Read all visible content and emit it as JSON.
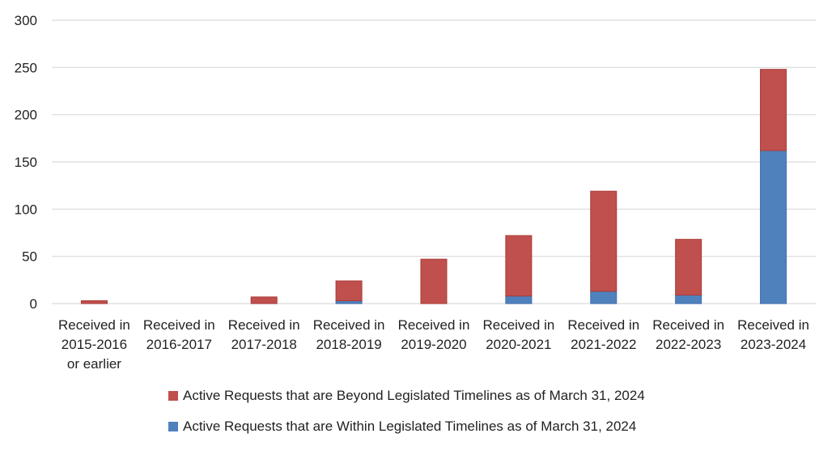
{
  "chart_data": {
    "type": "bar",
    "stacked": true,
    "title": "",
    "xlabel": "",
    "ylabel": "",
    "ylim": [
      0,
      300
    ],
    "yticks": [
      0,
      50,
      100,
      150,
      200,
      250,
      300
    ],
    "grid": true,
    "legend_position": "bottom",
    "categories": [
      [
        "Received in",
        "2015-2016",
        "or earlier"
      ],
      [
        "Received in",
        "2016-2017"
      ],
      [
        "Received in",
        "2017-2018"
      ],
      [
        "Received in",
        "2018-2019"
      ],
      [
        "Received in",
        "2019-2020"
      ],
      [
        "Received in",
        "2020-2021"
      ],
      [
        "Received in",
        "2021-2022"
      ],
      [
        "Received in",
        "2022-2023"
      ],
      [
        "Received in",
        "2023-2024"
      ]
    ],
    "series": [
      {
        "name": "Active Requests that are Within Legislated Timelines as of March 31, 2024",
        "color": "#4f81bd",
        "values": [
          0,
          0,
          0,
          3,
          0,
          8,
          13,
          9,
          162
        ]
      },
      {
        "name": "Active Requests that are Beyond Legislated Timelines as of March 31, 2024",
        "color": "#c0504d",
        "values": [
          3,
          0,
          7,
          21,
          47,
          64,
          106,
          59,
          86
        ]
      }
    ],
    "legend_order": [
      1,
      0
    ]
  }
}
